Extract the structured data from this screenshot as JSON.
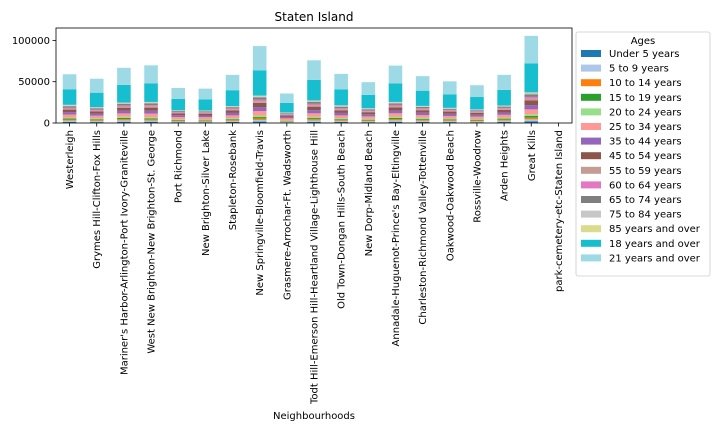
{
  "chart_data": {
    "type": "bar",
    "stacked": true,
    "title": "Staten Island",
    "xlabel": "Neighbourhoods",
    "ylabel": "",
    "ylim": [
      0,
      115000
    ],
    "yticks": [
      0,
      50000,
      100000
    ],
    "ytick_labels": [
      "0",
      "50000",
      "100000"
    ],
    "legend": {
      "title": "Ages",
      "placement": "right, outside plot"
    },
    "categories": [
      "Westerleigh",
      "Grymes Hill-Clifton-Fox Hills",
      "Mariner's Harbor-Arlington-Port Ivory-Graniteville",
      "West New Brighton-New Brighton-St. George",
      "Port Richmond",
      "New Brighton-Silver Lake",
      "Stapleton-Rosebank",
      "New Springville-Bloomfield-Travis",
      "Grasmere-Arrochar-Ft. Wadsworth",
      "Todt Hill-Emerson Hill-Heartland Village-Lighthouse Hill",
      "Old Town-Dongan Hills-South Beach",
      "New Dorp-Midland Beach",
      "Annadale-Huguenot-Prince's Bay-Eltingville",
      "Charleston-Richmond Valley-Tottenville",
      "Oakwood-Oakwood Beach",
      "Rossville-Woodrow",
      "Arden Heights",
      "Great Kills",
      "park-cemetery-etc-Staten Island"
    ],
    "series": [
      {
        "name": "Under 5 years",
        "color": "#1f77b4",
        "values": [
          1400,
          1100,
          1500,
          1500,
          900,
          850,
          1200,
          1700,
          700,
          1400,
          1200,
          1000,
          1500,
          1200,
          1100,
          950,
          1300,
          2100,
          0
        ]
      },
      {
        "name": "5 to 9 years",
        "color": "#aec7e8",
        "values": [
          1500,
          1300,
          1700,
          1500,
          1000,
          950,
          1300,
          2000,
          750,
          1700,
          1300,
          1100,
          1700,
          1400,
          1200,
          1100,
          1500,
          2300,
          0
        ]
      },
      {
        "name": "10 to 14 years",
        "color": "#ff7f0e",
        "values": [
          1300,
          1100,
          1500,
          1400,
          900,
          850,
          1100,
          1800,
          700,
          1500,
          1100,
          1000,
          1600,
          1300,
          1100,
          1000,
          1300,
          2100,
          0
        ]
      },
      {
        "name": "15 to 19 years",
        "color": "#2ca02c",
        "values": [
          1200,
          1000,
          1400,
          1300,
          800,
          800,
          1000,
          1700,
          650,
          1400,
          1000,
          900,
          1500,
          1200,
          1000,
          900,
          1200,
          2000,
          0
        ]
      },
      {
        "name": "20 to 24 years",
        "color": "#98df8a",
        "values": [
          1300,
          1100,
          1500,
          1400,
          900,
          850,
          1100,
          1800,
          700,
          1400,
          1100,
          1000,
          1500,
          1200,
          1000,
          900,
          1200,
          2000,
          0
        ]
      },
      {
        "name": "25 to 34 years",
        "color": "#ff9896",
        "values": [
          3600,
          3200,
          4000,
          4200,
          2700,
          2700,
          3500,
          5500,
          2100,
          4300,
          3500,
          3000,
          3900,
          3300,
          3100,
          2800,
          3400,
          6000,
          0
        ]
      },
      {
        "name": "35 to 44 years",
        "color": "#9467bd",
        "values": [
          2900,
          2600,
          3400,
          3600,
          2200,
          2100,
          3000,
          4800,
          1800,
          3900,
          3000,
          2500,
          3500,
          2900,
          2600,
          2300,
          2900,
          5200,
          0
        ]
      },
      {
        "name": "45 to 54 years",
        "color": "#8c564b",
        "values": [
          3000,
          2700,
          3500,
          3700,
          2200,
          2200,
          3100,
          5000,
          1900,
          4200,
          3200,
          2600,
          3700,
          3000,
          2700,
          2400,
          3100,
          5500,
          0
        ]
      },
      {
        "name": "55 to 59 years",
        "color": "#c49c94",
        "values": [
          1300,
          1200,
          1500,
          1600,
          900,
          900,
          1300,
          2100,
          800,
          1800,
          1400,
          1100,
          1600,
          1300,
          1100,
          1000,
          1300,
          2300,
          0
        ]
      },
      {
        "name": "60 to 64 years",
        "color": "#e377c2",
        "values": [
          1200,
          1100,
          1300,
          1400,
          800,
          800,
          1100,
          1900,
          700,
          1600,
          1200,
          1000,
          1400,
          1100,
          1000,
          900,
          1100,
          2100,
          0
        ]
      },
      {
        "name": "65 to 74 years",
        "color": "#7f7f7f",
        "values": [
          1700,
          1500,
          1800,
          2000,
          1100,
          1100,
          1500,
          2600,
          1000,
          2200,
          1700,
          1400,
          1900,
          1500,
          1300,
          1200,
          1500,
          2900,
          0
        ]
      },
      {
        "name": "75 to 84 years",
        "color": "#c7c7c7",
        "values": [
          1100,
          900,
          1100,
          1300,
          700,
          700,
          900,
          1600,
          650,
          1300,
          1100,
          900,
          1200,
          900,
          800,
          700,
          900,
          1800,
          0
        ]
      },
      {
        "name": "85 years and over",
        "color": "#dbdb8d",
        "values": [
          500,
          400,
          500,
          600,
          300,
          300,
          400,
          700,
          300,
          600,
          500,
          400,
          500,
          400,
          350,
          300,
          400,
          800,
          0
        ]
      },
      {
        "name": "18 years and over",
        "color": "#17becf",
        "values": [
          18900,
          17500,
          21500,
          22600,
          13800,
          13500,
          19200,
          30600,
          11700,
          24800,
          19500,
          16100,
          22500,
          18400,
          16400,
          15000,
          19000,
          34900,
          0
        ]
      },
      {
        "name": "21 years and over",
        "color": "#9edae5",
        "values": [
          18100,
          16900,
          20600,
          21700,
          13200,
          13000,
          18500,
          29300,
          11300,
          23800,
          18700,
          15400,
          21500,
          17600,
          15700,
          14300,
          18200,
          33500,
          0
        ]
      }
    ]
  }
}
